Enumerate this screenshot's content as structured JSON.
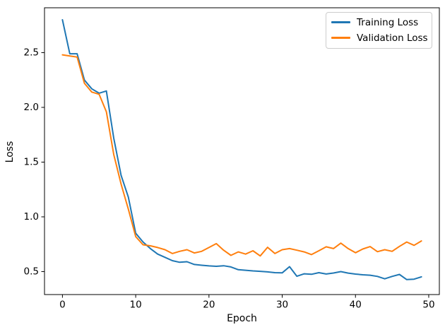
{
  "chart_data": {
    "type": "line",
    "title": "",
    "xlabel": "Epoch",
    "ylabel": "Loss",
    "grid": false,
    "x": [
      0,
      1,
      2,
      3,
      4,
      5,
      6,
      7,
      8,
      9,
      10,
      11,
      12,
      13,
      14,
      15,
      16,
      17,
      18,
      19,
      20,
      21,
      22,
      23,
      24,
      25,
      26,
      27,
      28,
      29,
      30,
      31,
      32,
      33,
      34,
      35,
      36,
      37,
      38,
      39,
      40,
      41,
      42,
      43,
      44,
      45,
      46,
      47,
      48,
      49
    ],
    "series": [
      {
        "name": "Training Loss",
        "color": "#1f77b4",
        "values": [
          2.8,
          2.49,
          2.49,
          2.25,
          2.17,
          2.13,
          2.15,
          1.72,
          1.38,
          1.18,
          0.85,
          0.77,
          0.71,
          0.66,
          0.63,
          0.6,
          0.585,
          0.59,
          0.565,
          0.558,
          0.552,
          0.548,
          0.553,
          0.542,
          0.517,
          0.512,
          0.506,
          0.502,
          0.497,
          0.49,
          0.488,
          0.545,
          0.457,
          0.48,
          0.475,
          0.49,
          0.478,
          0.487,
          0.5,
          0.486,
          0.477,
          0.471,
          0.467,
          0.456,
          0.434,
          0.456,
          0.474,
          0.427,
          0.431,
          0.452
        ]
      },
      {
        "name": "Validation Loss",
        "color": "#ff7f0e",
        "values": [
          2.48,
          2.47,
          2.46,
          2.22,
          2.14,
          2.12,
          1.96,
          1.57,
          1.3,
          1.07,
          0.82,
          0.745,
          0.735,
          0.72,
          0.7,
          0.665,
          0.685,
          0.7,
          0.67,
          0.685,
          0.72,
          0.755,
          0.695,
          0.648,
          0.68,
          0.66,
          0.69,
          0.643,
          0.722,
          0.665,
          0.7,
          0.71,
          0.695,
          0.68,
          0.655,
          0.69,
          0.726,
          0.71,
          0.76,
          0.71,
          0.672,
          0.706,
          0.728,
          0.682,
          0.7,
          0.685,
          0.73,
          0.77,
          0.74,
          0.78
        ]
      }
    ],
    "xlim": [
      -2.45,
      51.45
    ],
    "ylim": [
      0.29,
      2.91
    ],
    "xticks": {
      "values": [
        0,
        10,
        20,
        30,
        40,
        50
      ],
      "labels": [
        "0",
        "10",
        "20",
        "30",
        "40",
        "50"
      ]
    },
    "yticks": {
      "values": [
        0.5,
        1.0,
        1.5,
        2.0,
        2.5
      ],
      "labels": [
        "0.5",
        "1.0",
        "1.5",
        "2.0",
        "2.5"
      ]
    },
    "legend": {
      "position": "upper right",
      "entries": [
        "Training Loss",
        "Validation Loss"
      ]
    },
    "axis_color": "#000000",
    "background_color": "#ffffff"
  }
}
